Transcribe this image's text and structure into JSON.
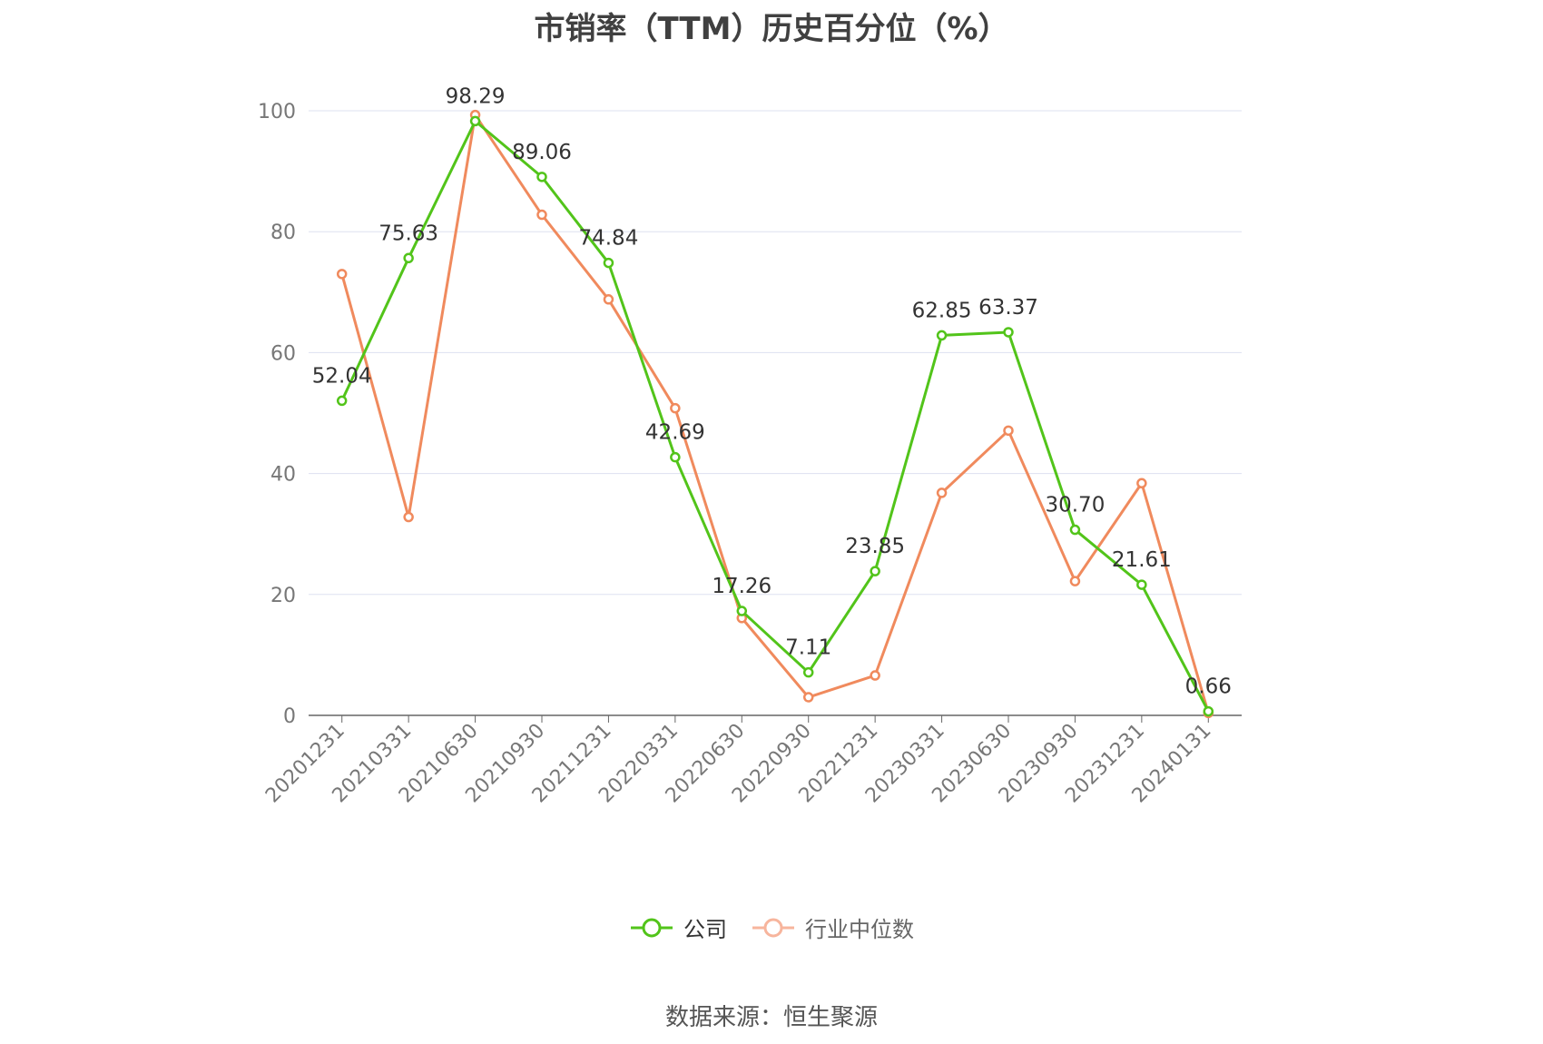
{
  "title": "市销率（TTM）历史百分位（%）",
  "source": "数据来源：恒生聚源",
  "colors": {
    "company": "#52c41a",
    "industry": "#f08a5d",
    "grid": "#dde1f0",
    "axis": "#666666"
  },
  "legend": {
    "company": "公司",
    "industry": "行业中位数"
  },
  "chart_data": {
    "type": "line",
    "title": "市销率（TTM）历史百分位（%）",
    "xlabel": "",
    "ylabel": "",
    "ylim": [
      0,
      100
    ],
    "yticks": [
      0,
      20,
      40,
      60,
      80,
      100
    ],
    "grid": true,
    "legend_position": "bottom",
    "categories": [
      "20201231",
      "20210331",
      "20210630",
      "20210930",
      "20211231",
      "20220331",
      "20220630",
      "20220930",
      "20221231",
      "20230331",
      "20230630",
      "20230930",
      "20231231",
      "20240131"
    ],
    "series": [
      {
        "name": "公司",
        "values": [
          52.04,
          75.63,
          98.29,
          89.06,
          74.84,
          42.69,
          17.26,
          7.11,
          23.85,
          62.85,
          63.37,
          30.7,
          21.61,
          0.66
        ],
        "labels": [
          "52.04",
          "75.63",
          "98.29",
          "89.06",
          "74.84",
          "42.69",
          "17.26",
          "7.11",
          "23.85",
          "62.85",
          "63.37",
          "30.70",
          "21.61",
          "0.66"
        ]
      },
      {
        "name": "行业中位数",
        "values": [
          73.0,
          32.8,
          99.3,
          82.8,
          68.8,
          50.8,
          16.1,
          3.0,
          6.6,
          36.8,
          47.1,
          22.2,
          38.4,
          0.4
        ]
      }
    ]
  }
}
